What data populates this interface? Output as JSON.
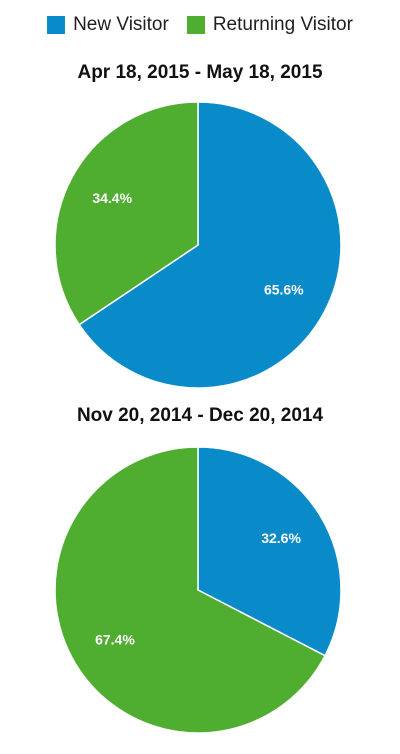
{
  "legend": {
    "items": [
      {
        "label": "New Visitor",
        "color": "#0a8bc9"
      },
      {
        "label": "Returning Visitor",
        "color": "#4fae2f"
      }
    ]
  },
  "chart_data": [
    {
      "type": "pie",
      "title": "Apr 18, 2015 - May 18, 2015",
      "slices": [
        {
          "label": "New Visitor",
          "value": 65.6,
          "value_label": "65.6%",
          "color": "#0a8bc9"
        },
        {
          "label": "Returning Visitor",
          "value": 34.4,
          "value_label": "34.4%",
          "color": "#4fae2f"
        }
      ],
      "start": "12 o'clock",
      "direction": "clockwise"
    },
    {
      "type": "pie",
      "title": "Nov 20, 2014 - Dec 20, 2014",
      "slices": [
        {
          "label": "New Visitor",
          "value": 32.6,
          "value_label": "32.6%",
          "color": "#0a8bc9"
        },
        {
          "label": "Returning Visitor",
          "value": 67.4,
          "value_label": "67.4%",
          "color": "#4fae2f"
        }
      ],
      "start": "12 o'clock",
      "direction": "clockwise"
    }
  ]
}
